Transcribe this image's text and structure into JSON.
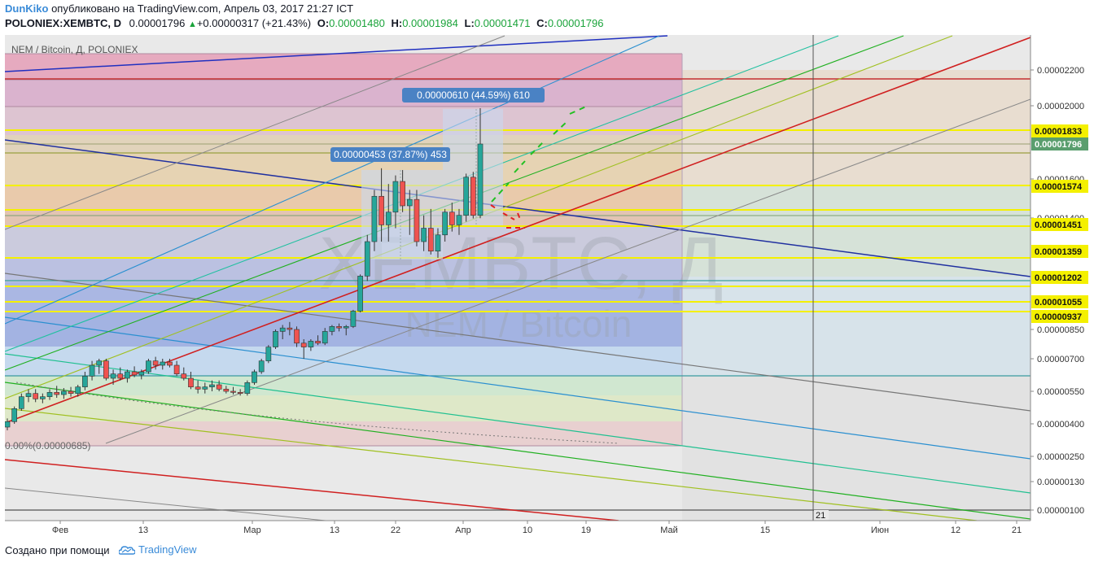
{
  "header": {
    "author": "DunKiko",
    "published_text": "опубликовано на TradingView.com, Апрель 03, 2017 21:27 ICT",
    "symbol": "POLONIEX:XEMBTC, D",
    "last_price": "0.00001796",
    "change": "+0.00000317 (+21.43%)",
    "o_label": "O:",
    "o_value": "0.00001480",
    "h_label": "H:",
    "h_value": "0.00001984",
    "l_label": "L:",
    "l_value": "0.00001471",
    "c_label": "C:",
    "c_value": "0.00001796"
  },
  "footer": {
    "made_with": "Создано при помощи",
    "brand": "TradingView"
  },
  "colors": {
    "up": "#26a69a",
    "down": "#ef5350",
    "accent": "#3a8bd8",
    "change_green": "#1aa33a"
  },
  "chart_data": {
    "type": "candlestick",
    "pane_title": "NEM / Bitcoin, Д, POLONIEX",
    "watermark_symbol": "XEMBTC, Д",
    "watermark_name": "NEM / Bitcoin",
    "x_tick_labels": [
      "Фев",
      "13",
      "Мар",
      "13",
      "22",
      "Апр",
      "10",
      "19",
      "Май",
      "15",
      "Июн",
      "12",
      "21"
    ],
    "y_tick_labels": [
      "0.00002200",
      "0.00002000",
      "0.00001600",
      "0.00001400",
      "0.00000850",
      "0.00000700",
      "0.00000550",
      "0.00000400",
      "0.00000250",
      "0.00000130",
      "0.00000100"
    ],
    "price_tags": [
      {
        "value": "0.00001833",
        "kind": "yellow"
      },
      {
        "value": "0.00001796",
        "kind": "last"
      },
      {
        "value": "0.00001574",
        "kind": "yellow"
      },
      {
        "value": "0.00001451",
        "kind": "yellow"
      },
      {
        "value": "0.00001359",
        "kind": "yellow"
      },
      {
        "value": "0.00001202",
        "kind": "yellow"
      },
      {
        "value": "0.00001055",
        "kind": "yellow"
      },
      {
        "value": "0.00000937",
        "kind": "yellow"
      }
    ],
    "measure_labels": [
      "0.00000610 (44.59%) 610",
      "0.00000453 (37.87%) 453"
    ],
    "fib_label": "0.00%(0.00000685)",
    "crosshair_date_label": "21",
    "candles": [
      {
        "o": 3.85e-06,
        "h": 4.25e-06,
        "l": 3.7e-06,
        "c": 4.1e-06
      },
      {
        "o": 4.1e-06,
        "h": 4.8e-06,
        "l": 4e-06,
        "c": 4.7e-06
      },
      {
        "o": 4.7e-06,
        "h": 5.4e-06,
        "l": 4.6e-06,
        "c": 5.25e-06
      },
      {
        "o": 5.25e-06,
        "h": 5.6e-06,
        "l": 5e-06,
        "c": 5.4e-06
      },
      {
        "o": 5.4e-06,
        "h": 5.6e-06,
        "l": 5e-06,
        "c": 5.15e-06
      },
      {
        "o": 5.15e-06,
        "h": 5.4e-06,
        "l": 4.95e-06,
        "c": 5.25e-06
      },
      {
        "o": 5.25e-06,
        "h": 5.6e-06,
        "l": 5.1e-06,
        "c": 5.45e-06
      },
      {
        "o": 5.45e-06,
        "h": 5.75e-06,
        "l": 5.2e-06,
        "c": 5.35e-06
      },
      {
        "o": 5.35e-06,
        "h": 5.65e-06,
        "l": 5.15e-06,
        "c": 5.5e-06
      },
      {
        "o": 5.5e-06,
        "h": 5.7e-06,
        "l": 5.25e-06,
        "c": 5.4e-06
      },
      {
        "o": 5.4e-06,
        "h": 5.8e-06,
        "l": 5.25e-06,
        "c": 5.7e-06
      },
      {
        "o": 5.7e-06,
        "h": 6.4e-06,
        "l": 5.55e-06,
        "c": 6.2e-06
      },
      {
        "o": 6.2e-06,
        "h": 6.9e-06,
        "l": 6e-06,
        "c": 6.7e-06
      },
      {
        "o": 6.7e-06,
        "h": 7e-06,
        "l": 6.3e-06,
        "c": 6.9e-06
      },
      {
        "o": 6.9e-06,
        "h": 7e-06,
        "l": 6e-06,
        "c": 6.1e-06
      },
      {
        "o": 6.1e-06,
        "h": 6.5e-06,
        "l": 5.8e-06,
        "c": 6.3e-06
      },
      {
        "o": 6.3e-06,
        "h": 6.6e-06,
        "l": 6e-06,
        "c": 6.1e-06
      },
      {
        "o": 6.1e-06,
        "h": 6.5e-06,
        "l": 5.9e-06,
        "c": 6.4e-06
      },
      {
        "o": 6.4e-06,
        "h": 6.65e-06,
        "l": 6.15e-06,
        "c": 6.25e-06
      },
      {
        "o": 6.25e-06,
        "h": 6.5e-06,
        "l": 6.05e-06,
        "c": 6.4e-06
      },
      {
        "o": 6.4e-06,
        "h": 7e-06,
        "l": 6.3e-06,
        "c": 6.9e-06
      },
      {
        "o": 6.9e-06,
        "h": 7.1e-06,
        "l": 6.5e-06,
        "c": 6.7e-06
      },
      {
        "o": 6.7e-06,
        "h": 7e-06,
        "l": 6.5e-06,
        "c": 6.85e-06
      },
      {
        "o": 6.85e-06,
        "h": 7e-06,
        "l": 6.6e-06,
        "c": 6.7e-06
      },
      {
        "o": 6.7e-06,
        "h": 6.9e-06,
        "l": 6.2e-06,
        "c": 6.3e-06
      },
      {
        "o": 6.3e-06,
        "h": 6.6e-06,
        "l": 6e-06,
        "c": 6.1e-06
      },
      {
        "o": 6.1e-06,
        "h": 6.4e-06,
        "l": 5.6e-06,
        "c": 5.7e-06
      },
      {
        "o": 5.7e-06,
        "h": 6e-06,
        "l": 5.4e-06,
        "c": 5.6e-06
      },
      {
        "o": 5.6e-06,
        "h": 5.9e-06,
        "l": 5.4e-06,
        "c": 5.7e-06
      },
      {
        "o": 5.7e-06,
        "h": 6e-06,
        "l": 5.5e-06,
        "c": 5.8e-06
      },
      {
        "o": 5.8e-06,
        "h": 6e-06,
        "l": 5.5e-06,
        "c": 5.6e-06
      },
      {
        "o": 5.6e-06,
        "h": 5.75e-06,
        "l": 5.4e-06,
        "c": 5.5e-06
      },
      {
        "o": 5.5e-06,
        "h": 5.7e-06,
        "l": 5.35e-06,
        "c": 5.45e-06
      },
      {
        "o": 5.45e-06,
        "h": 5.6e-06,
        "l": 5.3e-06,
        "c": 5.4e-06
      },
      {
        "o": 5.4e-06,
        "h": 6e-06,
        "l": 5.3e-06,
        "c": 5.9e-06
      },
      {
        "o": 5.9e-06,
        "h": 6.5e-06,
        "l": 5.8e-06,
        "c": 6.4e-06
      },
      {
        "o": 6.4e-06,
        "h": 7e-06,
        "l": 6.3e-06,
        "c": 6.9e-06
      },
      {
        "o": 6.9e-06,
        "h": 7.7e-06,
        "l": 6.8e-06,
        "c": 7.6e-06
      },
      {
        "o": 7.6e-06,
        "h": 8.5e-06,
        "l": 7.5e-06,
        "c": 8.4e-06
      },
      {
        "o": 8.4e-06,
        "h": 8.8e-06,
        "l": 8e-06,
        "c": 8.6e-06
      },
      {
        "o": 8.6e-06,
        "h": 9e-06,
        "l": 8.2e-06,
        "c": 8.5e-06
      },
      {
        "o": 8.5e-06,
        "h": 8.7e-06,
        "l": 7.6e-06,
        "c": 7.8e-06
      },
      {
        "o": 7.8e-06,
        "h": 8e-06,
        "l": 7e-06,
        "c": 7.6e-06
      },
      {
        "o": 7.6e-06,
        "h": 8e-06,
        "l": 7.4e-06,
        "c": 7.9e-06
      },
      {
        "o": 7.9e-06,
        "h": 8.2e-06,
        "l": 7.7e-06,
        "c": 7.8e-06
      },
      {
        "o": 7.8e-06,
        "h": 8.6e-06,
        "l": 7.7e-06,
        "c": 8.4e-06
      },
      {
        "o": 8.4e-06,
        "h": 8.8e-06,
        "l": 8.2e-06,
        "c": 8.7e-06
      },
      {
        "o": 8.7e-06,
        "h": 8.9e-06,
        "l": 8.4e-06,
        "c": 8.6e-06
      },
      {
        "o": 8.6e-06,
        "h": 8.8e-06,
        "l": 8.2e-06,
        "c": 8.7e-06
      },
      {
        "o": 8.7e-06,
        "h": 9.9e-06,
        "l": 8.6e-06,
        "c": 9.8e-06
      },
      {
        "o": 9.8e-06,
        "h": 1.22e-05,
        "l": 9.7e-06,
        "c": 1.21e-05
      },
      {
        "o": 1.21e-05,
        "h": 1.42e-05,
        "l": 1.18e-05,
        "c": 1.4e-05
      },
      {
        "o": 1.4e-05,
        "h": 1.56e-05,
        "l": 1.36e-05,
        "c": 1.54e-05
      },
      {
        "o": 1.54e-05,
        "h": 1.66e-05,
        "l": 1.4e-05,
        "c": 1.45e-05
      },
      {
        "o": 1.45e-05,
        "h": 1.58e-05,
        "l": 1.4e-05,
        "c": 1.49e-05
      },
      {
        "o": 1.49e-05,
        "h": 1.62e-05,
        "l": 1.44e-05,
        "c": 1.59e-05
      },
      {
        "o": 1.59e-05,
        "h": 1.65e-05,
        "l": 1.49e-05,
        "c": 1.51e-05
      },
      {
        "o": 1.51e-05,
        "h": 1.56e-05,
        "l": 1.42e-05,
        "c": 1.53e-05
      },
      {
        "o": 1.53e-05,
        "h": 1.56e-05,
        "l": 1.38e-05,
        "c": 1.4e-05
      },
      {
        "o": 1.4e-05,
        "h": 1.48e-05,
        "l": 1.36e-05,
        "c": 1.44e-05
      },
      {
        "o": 1.44e-05,
        "h": 1.5e-05,
        "l": 1.34e-05,
        "c": 1.36e-05
      },
      {
        "o": 1.36e-05,
        "h": 1.44e-05,
        "l": 1.32e-05,
        "c": 1.42e-05
      },
      {
        "o": 1.42e-05,
        "h": 1.5e-05,
        "l": 1.4e-05,
        "c": 1.49e-05
      },
      {
        "o": 1.49e-05,
        "h": 1.52e-05,
        "l": 1.43e-05,
        "c": 1.45e-05
      },
      {
        "o": 1.45e-05,
        "h": 1.5e-05,
        "l": 1.42e-05,
        "c": 1.48e-05
      },
      {
        "o": 1.48e-05,
        "h": 1.63e-05,
        "l": 1.46e-05,
        "c": 1.61e-05
      },
      {
        "o": 1.61e-05,
        "h": 1.64e-05,
        "l": 1.47e-05,
        "c": 1.48e-05
      },
      {
        "o": 1.48e-05,
        "h": 1.984e-05,
        "l": 1.471e-05,
        "c": 1.796e-05
      }
    ]
  }
}
